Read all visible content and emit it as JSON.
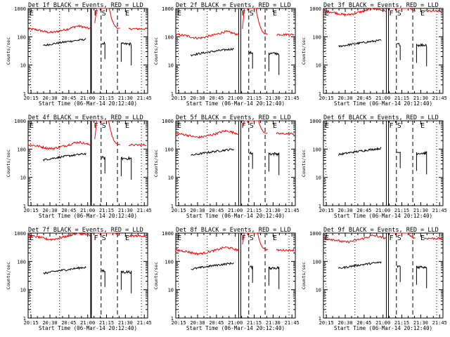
{
  "chart_data": {
    "type": "line",
    "xlabel": "Start Time (06-Mar-14 20:12:40)",
    "ylabel": "Counts/sec",
    "x_ticks": [
      "20:15",
      "20:30",
      "20:45",
      "21:00",
      "21:15",
      "21:30",
      "21:45"
    ],
    "y_ticks": [
      "1",
      "10",
      "100",
      "1000"
    ],
    "y_scale": "log",
    "ylim": [
      1,
      1000
    ],
    "markers": [
      "F",
      "S",
      "E"
    ],
    "series_names": [
      "BLACK = Events",
      "RED = LLD"
    ],
    "colors": {
      "events": "#000000",
      "lld": "#ff0000",
      "axes": "#000000"
    },
    "panels": [
      {
        "title": "Det 1f BLACK = Events, RED = LLD",
        "lld": 190,
        "events": 65,
        "solid": true
      },
      {
        "title": "Det 2f BLACK = Events, RED = LLD",
        "lld": 120,
        "events": 30,
        "solid": false
      },
      {
        "title": "Det 3f BLACK = Events, RED = LLD",
        "lld": 800,
        "events": 60,
        "solid": false
      },
      {
        "title": "Det 4f BLACK = Events, RED = LLD",
        "lld": 140,
        "events": 55,
        "solid": true
      },
      {
        "title": "Det 5f BLACK = Events, RED = LLD",
        "lld": 350,
        "events": 80,
        "solid": false
      },
      {
        "title": "Det 6f BLACK = Events, RED = LLD",
        "lld": null,
        "events": 85,
        "solid": false
      },
      {
        "title": "Det 7f BLACK = Events, RED = LLD",
        "lld": 800,
        "events": 50,
        "solid": true
      },
      {
        "title": "Det 8f BLACK = Events, RED = LLD",
        "lld": 250,
        "events": 70,
        "solid": false
      },
      {
        "title": "Det 9f BLACK = Events, RED = LLD",
        "lld": 650,
        "events": 75,
        "solid": false
      }
    ]
  }
}
